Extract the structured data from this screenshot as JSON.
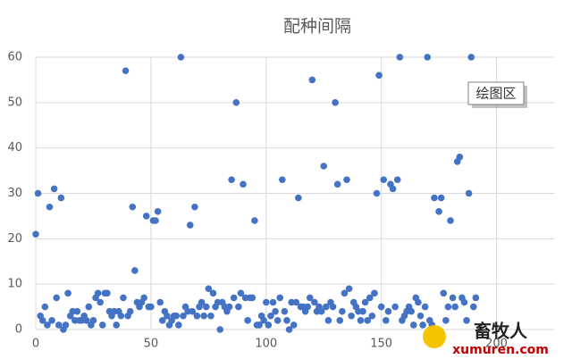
{
  "chart_data": {
    "type": "scatter",
    "title": "配种间隔",
    "annotation": "绘图区",
    "watermark": [
      "畜牧人",
      "xumuren.com"
    ],
    "color": "#4472c4",
    "grid": true,
    "xlim": [
      0,
      225
    ],
    "xticks": [
      0,
      50,
      100,
      150,
      200
    ],
    "ylim": [
      0,
      60
    ],
    "yticks": [
      0,
      10,
      20,
      30,
      40,
      50,
      60
    ],
    "x": [
      0,
      1,
      2,
      3,
      4,
      5,
      6,
      7,
      8,
      9,
      10,
      11,
      12,
      13,
      14,
      15,
      16,
      17,
      18,
      19,
      20,
      21,
      22,
      23,
      24,
      25,
      26,
      27,
      28,
      29,
      30,
      31,
      32,
      33,
      34,
      35,
      36,
      37,
      38,
      39,
      40,
      41,
      42,
      43,
      44,
      45,
      46,
      47,
      48,
      49,
      50,
      51,
      52,
      53,
      54,
      55,
      56,
      57,
      58,
      59,
      60,
      61,
      62,
      63,
      64,
      65,
      66,
      67,
      68,
      69,
      70,
      71,
      72,
      73,
      74,
      75,
      76,
      77,
      78,
      79,
      80,
      81,
      82,
      83,
      84,
      85,
      86,
      87,
      88,
      89,
      90,
      91,
      92,
      93,
      94,
      95,
      96,
      97,
      98,
      99,
      100,
      101,
      102,
      103,
      104,
      105,
      106,
      107,
      108,
      109,
      110,
      111,
      112,
      113,
      114,
      115,
      116,
      117,
      118,
      119,
      120,
      121,
      122,
      123,
      124,
      125,
      126,
      127,
      128,
      129,
      130,
      131,
      132,
      133,
      134,
      135,
      136,
      137,
      138,
      139,
      140,
      141,
      142,
      143,
      144,
      145,
      146,
      147,
      148,
      149,
      150,
      151,
      152,
      153,
      154,
      155,
      156,
      157,
      158,
      159,
      160,
      161,
      162,
      163,
      164,
      165,
      166,
      167,
      168,
      169,
      170,
      171,
      172,
      173,
      174,
      175,
      176,
      177,
      178,
      179,
      180,
      181,
      182,
      183,
      184,
      185,
      186,
      187,
      188,
      189,
      190,
      191
    ],
    "values": [
      21,
      30,
      3,
      2,
      5,
      1,
      27,
      2,
      31,
      7,
      1,
      29,
      0,
      1,
      8,
      3,
      4,
      2,
      4,
      2,
      2,
      3,
      2,
      5,
      1,
      2,
      7,
      8,
      6,
      1,
      8,
      8,
      4,
      3,
      4,
      1,
      4,
      3,
      7,
      57,
      3,
      4,
      27,
      13,
      6,
      5,
      6,
      7,
      25,
      5,
      5,
      24,
      24,
      26,
      6,
      2,
      4,
      3,
      1,
      2,
      3,
      3,
      1,
      60,
      3,
      5,
      4,
      23,
      4,
      27,
      3,
      5,
      6,
      3,
      5,
      9,
      3,
      8,
      5,
      6,
      0,
      6,
      5,
      4,
      5,
      33,
      7,
      50,
      5,
      8,
      32,
      7,
      2,
      7,
      7,
      24,
      1,
      1,
      3,
      2,
      6,
      1,
      3,
      6,
      4,
      2,
      7,
      33,
      4,
      2,
      0,
      6,
      1,
      6,
      29,
      5,
      5,
      4,
      5,
      7,
      55,
      6,
      4,
      5,
      4,
      36,
      5,
      2,
      6,
      5,
      50,
      32,
      2,
      4,
      8,
      33,
      9,
      3,
      6,
      5,
      4,
      2,
      4,
      6,
      2,
      7,
      3,
      8,
      30,
      56,
      5,
      33,
      2,
      4,
      32,
      31,
      5,
      33,
      60,
      2,
      3,
      4,
      5,
      4,
      1,
      7,
      6,
      3,
      1,
      5,
      60,
      2,
      1,
      29,
      0,
      26,
      29,
      8,
      2,
      5,
      24,
      7,
      5,
      37,
      38,
      7,
      6,
      2,
      30,
      60,
      5,
      7
    ]
  }
}
